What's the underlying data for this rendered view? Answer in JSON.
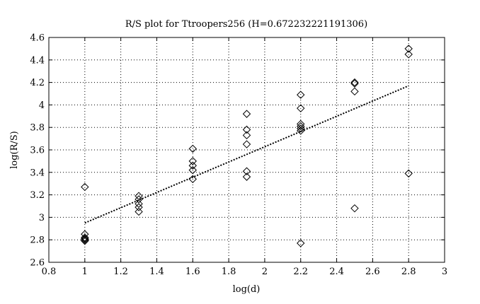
{
  "chart_data": {
    "type": "scatter",
    "title": "R/S plot for Ttroopers256 (H=0.672232221191306)",
    "xlabel": "log(d)",
    "ylabel": "log(R/S)",
    "xlim": [
      0.8,
      3
    ],
    "ylim": [
      2.6,
      4.6
    ],
    "xticks": [
      0.8,
      1,
      1.2,
      1.4,
      1.6,
      1.8,
      2,
      2.2,
      2.4,
      2.6,
      2.8,
      3
    ],
    "yticks": [
      2.6,
      2.8,
      3,
      3.2,
      3.4,
      3.6,
      3.8,
      4,
      4.2,
      4.4,
      4.6
    ],
    "grid": true,
    "series": [
      {
        "marker": "diamond",
        "color": "#000000",
        "points": [
          [
            1.0,
            3.27
          ],
          [
            1.0,
            2.85
          ],
          [
            1.0,
            2.82
          ],
          [
            1.0,
            2.81
          ],
          [
            1.0,
            2.8
          ],
          [
            1.0,
            2.79
          ],
          [
            1.3,
            3.19
          ],
          [
            1.3,
            3.16
          ],
          [
            1.3,
            3.12
          ],
          [
            1.3,
            3.09
          ],
          [
            1.3,
            3.05
          ],
          [
            1.6,
            3.61
          ],
          [
            1.6,
            3.5
          ],
          [
            1.6,
            3.46
          ],
          [
            1.6,
            3.42
          ],
          [
            1.6,
            3.34
          ],
          [
            1.9,
            3.92
          ],
          [
            1.9,
            3.78
          ],
          [
            1.9,
            3.73
          ],
          [
            1.9,
            3.65
          ],
          [
            1.9,
            3.41
          ],
          [
            1.9,
            3.36
          ],
          [
            2.2,
            4.09
          ],
          [
            2.2,
            3.97
          ],
          [
            2.2,
            3.83
          ],
          [
            2.2,
            3.81
          ],
          [
            2.2,
            3.79
          ],
          [
            2.2,
            3.77
          ],
          [
            2.2,
            2.77
          ],
          [
            2.5,
            4.2
          ],
          [
            2.5,
            4.19
          ],
          [
            2.5,
            4.12
          ],
          [
            2.5,
            3.08
          ],
          [
            2.8,
            4.5
          ],
          [
            2.8,
            4.45
          ],
          [
            2.8,
            3.39
          ]
        ]
      },
      {
        "type": "line",
        "style": "dotted",
        "color": "#000000",
        "points": [
          [
            1.0,
            2.95
          ],
          [
            2.8,
            4.17
          ]
        ]
      }
    ]
  }
}
